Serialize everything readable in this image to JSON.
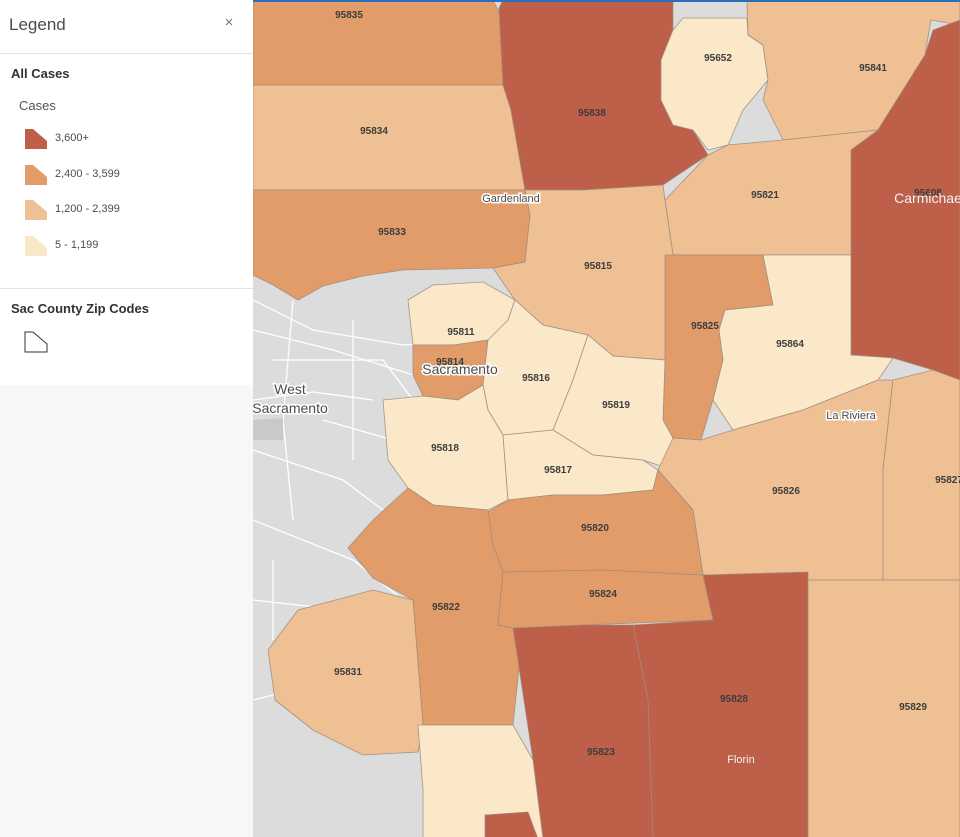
{
  "legend": {
    "title": "Legend",
    "close_glyph": "×",
    "layer_cases": {
      "title": "All Cases",
      "field": "Cases",
      "classes": [
        {
          "label": "3,600+",
          "color": "#bd5f49"
        },
        {
          "label": "2,400 - 3,599",
          "color": "#e29c6a"
        },
        {
          "label": "1,200 - 2,399",
          "color": "#eec093"
        },
        {
          "label": "5 - 1,199",
          "color": "#fbe8c8"
        }
      ]
    },
    "layer_zip": {
      "title": "Sac County Zip Codes"
    }
  },
  "map": {
    "zip_labels": [
      "95835",
      "95652",
      "95841",
      "95838",
      "95834",
      "95821",
      "95608",
      "95833",
      "95815",
      "95825",
      "95864",
      "95811",
      "95814",
      "95816",
      "95819",
      "95818",
      "95817",
      "95826",
      "95827",
      "95820",
      "95822",
      "95824",
      "95828",
      "95831",
      "95829",
      "95823"
    ],
    "places": {
      "west_sacramento_1": "West",
      "west_sacramento_2": "Sacramento",
      "sacramento": "Sacramento",
      "gardenland": "Gardenland",
      "carmichael": "Carmichae",
      "la_riviera": "La Riviera",
      "florin": "Florin"
    }
  }
}
